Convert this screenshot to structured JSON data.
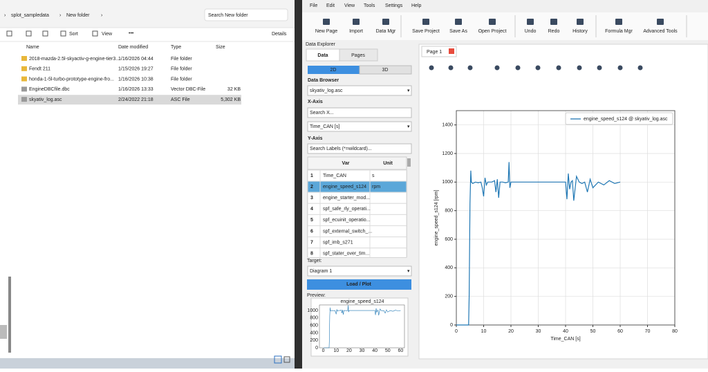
{
  "explorer": {
    "breadcrumb": [
      "splot_sampledata",
      "New folder"
    ],
    "search": "Search New folder",
    "toolbar": {
      "sort": "Sort",
      "view": "View",
      "details": "Details"
    },
    "columns": [
      "Name",
      "Date modified",
      "Type",
      "Size"
    ],
    "rows": [
      {
        "name": "2018-mazda-2.5l-skyactiv-g-engine-tier3...",
        "date": "1/16/2026 04:44",
        "type": "File folder"
      },
      {
        "name": "Fendt 211",
        "date": "1/15/2026 19:27",
        "type": "File folder"
      },
      {
        "name": "honda-1-5l-turbo-prototype-engine-fro...",
        "date": "1/16/2026 10:38",
        "type": "File folder"
      },
      {
        "name": "EngineDBCfile.dbc",
        "date": "1/16/2026 13:33",
        "type": "Vector DBC-File",
        "size": "32 KB"
      },
      {
        "name": "skyativ_log.asc",
        "date": "2/24/2022 21:18",
        "type": "ASC File",
        "size": "5,302 KB"
      }
    ]
  },
  "app": {
    "menu": [
      "File",
      "Edit",
      "View",
      "Tools",
      "Settings",
      "Help"
    ],
    "toolbar": [
      "New Page",
      "Import",
      "Data Mgr",
      "Save Project",
      "Save As",
      "Open Project",
      "Undo",
      "Redo",
      "History",
      "Formula Mgr",
      "Advanced Tools"
    ]
  },
  "data_explorer": {
    "title": "Data Explorer",
    "tabs": [
      "Data",
      "Pages"
    ],
    "modes": [
      "2D",
      "3D"
    ],
    "browser_label": "Data Browser",
    "file": "skyativ_log.asc",
    "x_label": "X-Axis",
    "x_search": "Search X...",
    "x_select": "Time_CAN [s]",
    "y_label": "Y-Axis",
    "y_search": "Search Labels (*=wildcard)...",
    "table_headers": [
      "Var",
      "Unit"
    ],
    "table_rows": [
      {
        "n": 1,
        "var": "Time_CAN",
        "unit": "s"
      },
      {
        "n": 2,
        "var": "engine_speed_s124",
        "unit": "rpm"
      },
      {
        "n": 3,
        "var": "engine_starter_mod..."
      },
      {
        "n": 4,
        "var": "spf_safe_rly_operati..."
      },
      {
        "n": 5,
        "var": "spf_ecuinit_operatio..."
      },
      {
        "n": 6,
        "var": "spf_external_switch_..."
      },
      {
        "n": 7,
        "var": "spf_imb_s271"
      },
      {
        "n": 8,
        "var": "spf_stater_over_tim..."
      }
    ],
    "target_label": "Target:",
    "target": "Diagram 1",
    "load_button": "Load / Plot",
    "preview_label": "Preview:",
    "preview": {
      "title": "engine_speed_s124",
      "xlim": [
        -3,
        63
      ],
      "ylim": [
        0,
        1150
      ],
      "xticks": [
        0,
        10,
        20,
        30,
        40,
        50,
        60
      ],
      "yticks": [
        0,
        200,
        400,
        600,
        800,
        1000
      ]
    }
  },
  "page_tab": "Page 1",
  "chart_data": {
    "type": "line",
    "xlabel": "Time_CAN [s]",
    "ylabel": "engine_speed_s124 [rpm]",
    "xlim": [
      0,
      80
    ],
    "ylim": [
      0,
      1500
    ],
    "xticks": [
      0,
      10,
      20,
      30,
      40,
      50,
      60,
      70,
      80
    ],
    "yticks": [
      0,
      200,
      400,
      600,
      800,
      1000,
      1200,
      1400
    ],
    "grid": true,
    "legend": "upper right",
    "x": [
      0,
      4.5,
      4.7,
      5,
      5.3,
      5.5,
      6,
      7,
      8,
      9,
      9.5,
      10,
      10.5,
      11,
      11.5,
      12,
      13,
      14,
      14.5,
      15,
      15.5,
      16,
      17,
      18,
      19,
      19.3,
      19.6,
      20,
      22,
      25,
      30,
      35,
      38,
      40,
      40.5,
      41,
      41.5,
      42,
      42.5,
      43,
      44,
      45,
      46,
      47,
      48,
      49,
      50,
      52,
      54,
      56,
      58,
      60
    ],
    "series": [
      {
        "name": "engine_speed_s124 @ skyativ_log.asc",
        "color": "#1f77b4",
        "values": [
          0,
          0,
          200,
          850,
          1080,
          1000,
          990,
          1000,
          995,
          1000,
          960,
          900,
          1030,
          980,
          1000,
          1000,
          1000,
          1010,
          930,
          1020,
          890,
          1000,
          1000,
          995,
          1000,
          1140,
          960,
          1000,
          1000,
          1000,
          1000,
          1000,
          1000,
          1000,
          880,
          1060,
          950,
          1000,
          1010,
          870,
          1040,
          1000,
          990,
          1000,
          930,
          1020,
          960,
          1000,
          980,
          1010,
          990,
          1000
        ]
      }
    ]
  }
}
